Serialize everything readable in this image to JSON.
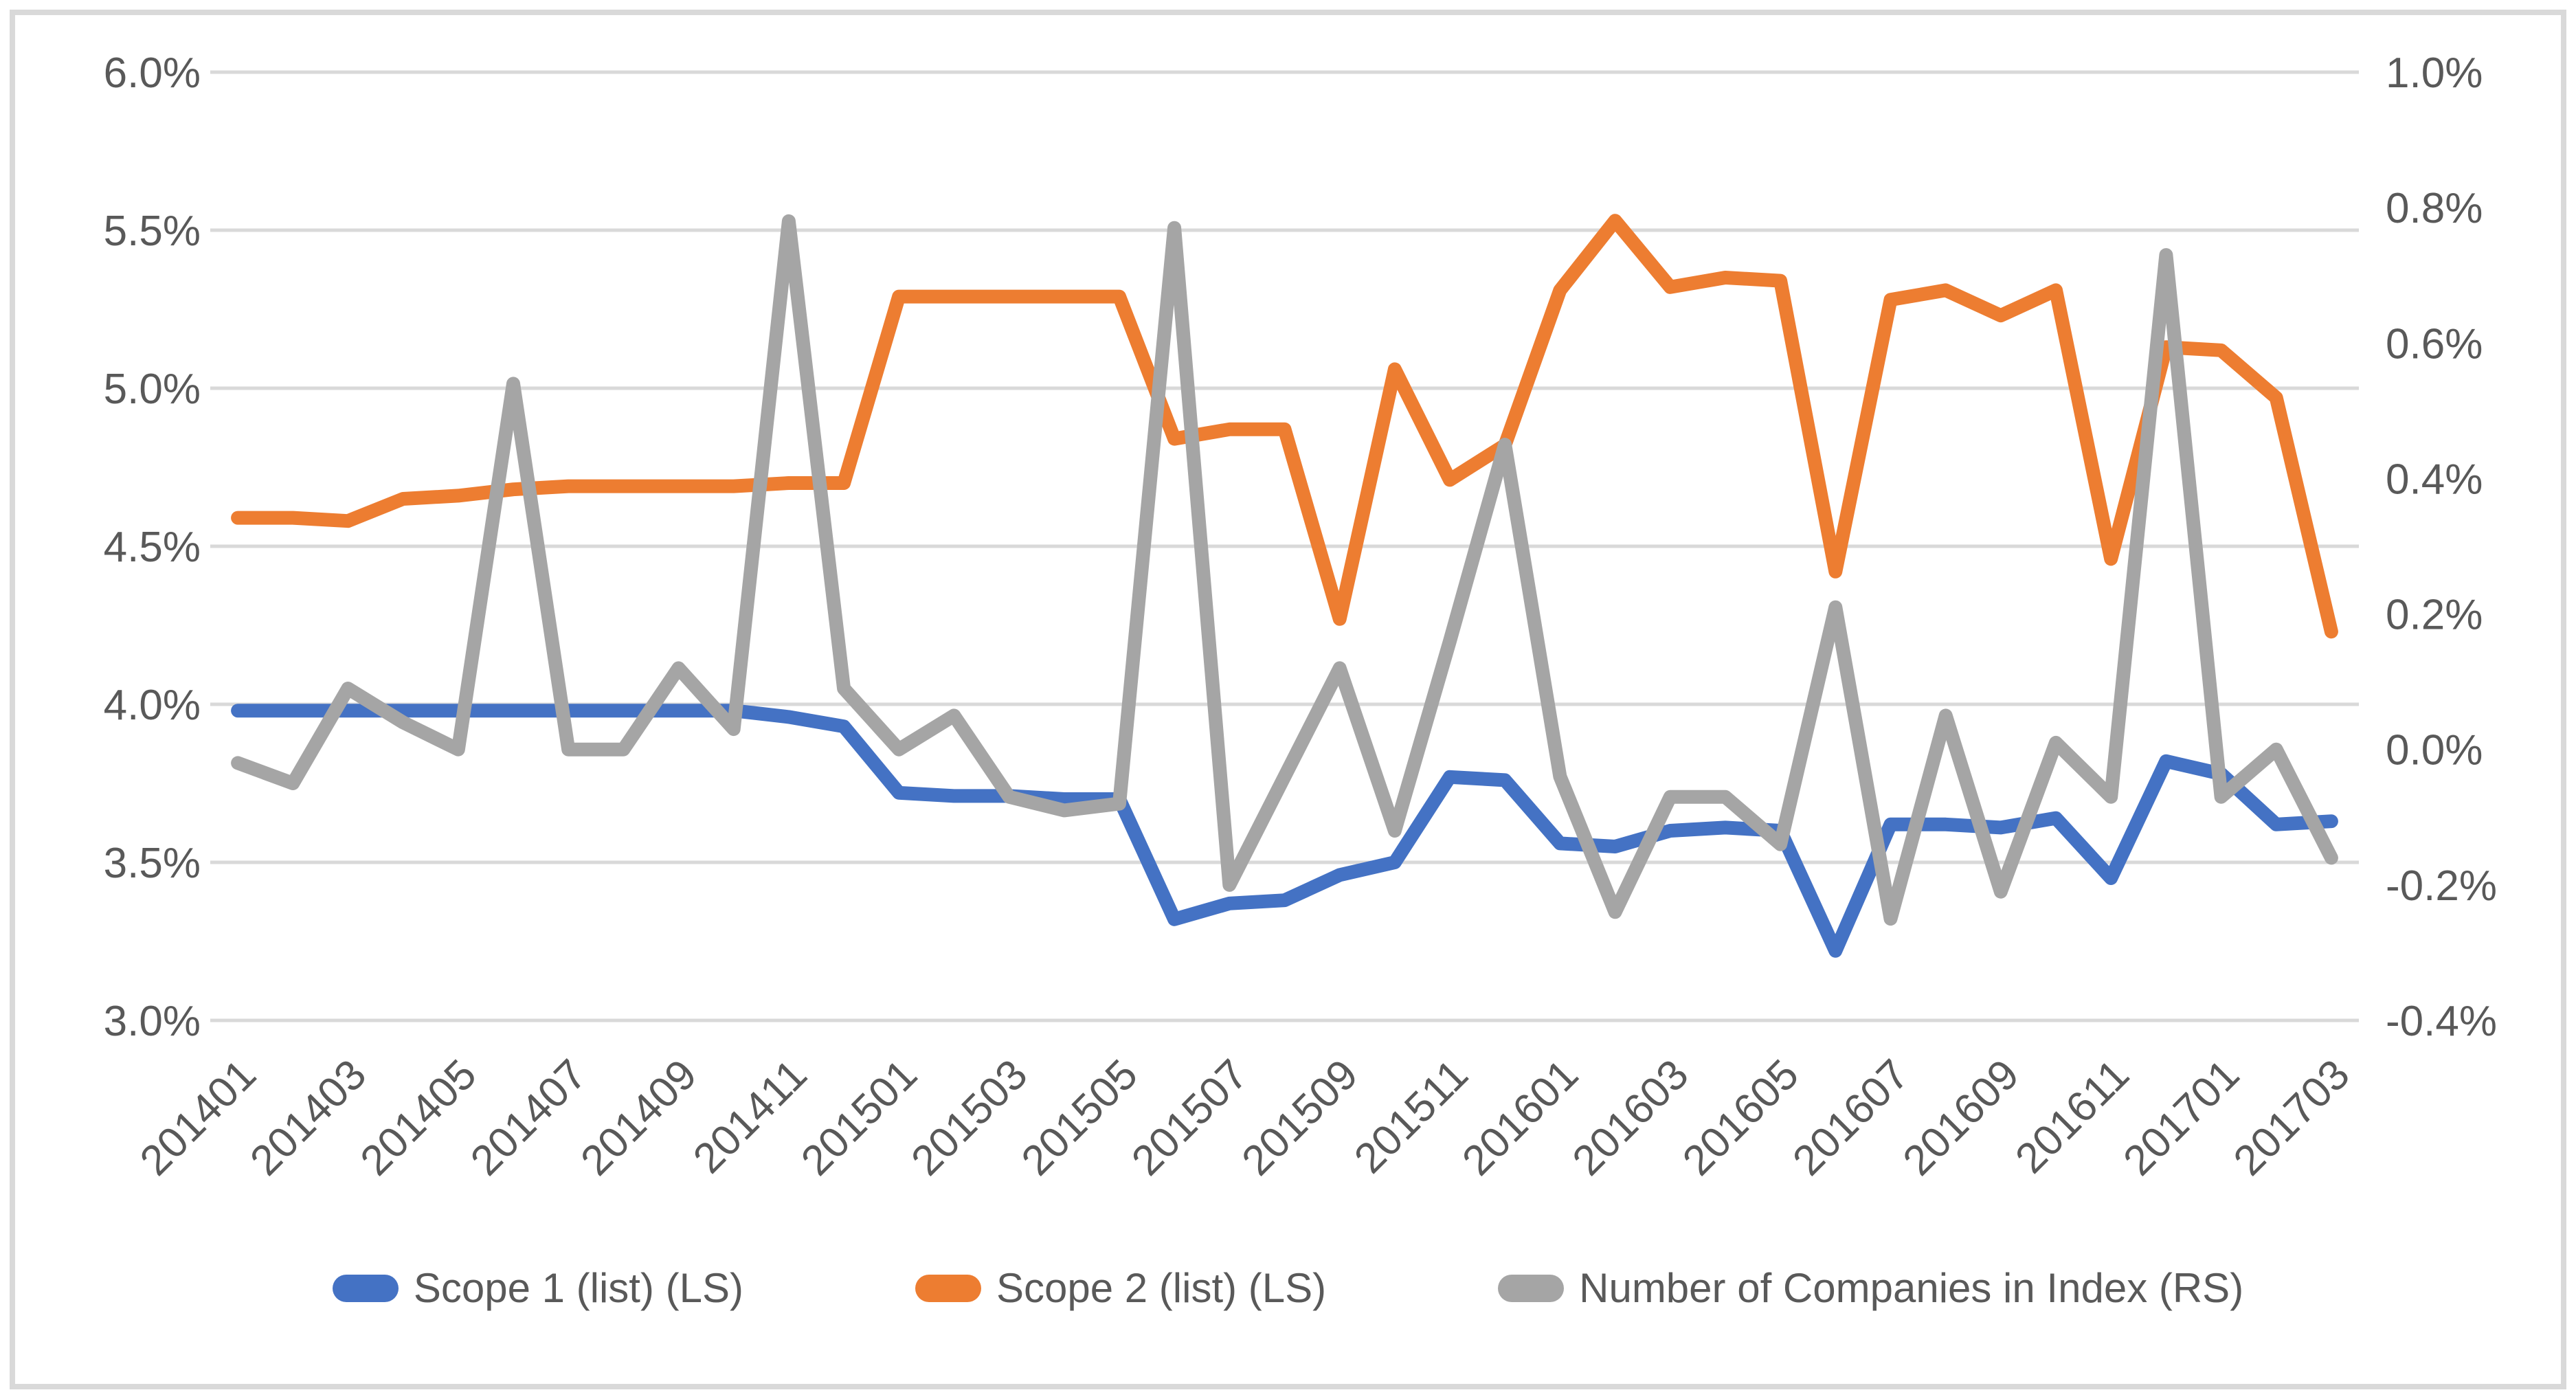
{
  "chart_data": {
    "type": "line",
    "title": "",
    "xlabel": "",
    "ylabel": "",
    "grid": true,
    "legend_position": "bottom",
    "categories": [
      "201401",
      "201402",
      "201403",
      "201404",
      "201405",
      "201406",
      "201407",
      "201408",
      "201409",
      "201410",
      "201411",
      "201412",
      "201501",
      "201502",
      "201503",
      "201504",
      "201505",
      "201506",
      "201507",
      "201508",
      "201509",
      "201510",
      "201511",
      "201512",
      "201601",
      "201602",
      "201603",
      "201604",
      "201605",
      "201606",
      "201607",
      "201608",
      "201609",
      "201610",
      "201611",
      "201612",
      "201701",
      "201702",
      "201703"
    ],
    "x_ticks": [
      "201401",
      "201403",
      "201405",
      "201407",
      "201409",
      "201411",
      "201501",
      "201503",
      "201505",
      "201507",
      "201509",
      "201511",
      "201601",
      "201603",
      "201605",
      "201607",
      "201609",
      "201611",
      "201701",
      "201703"
    ],
    "left_axis": {
      "min": 3.0,
      "max": 6.0,
      "ticks": [
        "6.0%",
        "5.5%",
        "5.0%",
        "4.5%",
        "4.0%",
        "3.5%",
        "3.0%"
      ],
      "tick_values": [
        6.0,
        5.5,
        5.0,
        4.5,
        4.0,
        3.5,
        3.0
      ]
    },
    "right_axis": {
      "min": -0.4,
      "max": 1.0,
      "ticks": [
        "1.0%",
        "0.8%",
        "0.6%",
        "0.4%",
        "0.2%",
        "0.0%",
        "-0.2%",
        "-0.4%"
      ],
      "tick_values": [
        1.0,
        0.8,
        0.6,
        0.4,
        0.2,
        0.0,
        -0.2,
        -0.4
      ]
    },
    "series": [
      {
        "name": "Scope 1 (list) (LS)",
        "axis": "left",
        "color": "#4472C4",
        "values": [
          3.98,
          3.98,
          3.98,
          3.98,
          3.98,
          3.98,
          3.98,
          3.98,
          3.98,
          3.98,
          3.96,
          3.93,
          3.72,
          3.71,
          3.71,
          3.7,
          3.7,
          3.32,
          3.37,
          3.38,
          3.46,
          3.5,
          3.77,
          3.76,
          3.56,
          3.55,
          3.6,
          3.61,
          3.6,
          3.22,
          3.62,
          3.62,
          3.61,
          3.64,
          3.45,
          3.82,
          3.78,
          3.62,
          3.63
        ]
      },
      {
        "name": "Scope 2 (list) (LS)",
        "axis": "left",
        "color": "#ED7D31",
        "values": [
          4.59,
          4.59,
          4.58,
          4.65,
          4.66,
          4.68,
          4.69,
          4.69,
          4.69,
          4.69,
          4.7,
          4.7,
          5.29,
          5.29,
          5.29,
          5.29,
          5.29,
          4.84,
          4.87,
          4.87,
          4.27,
          5.06,
          4.71,
          4.82,
          5.31,
          5.53,
          5.32,
          5.35,
          5.34,
          4.42,
          5.28,
          5.31,
          5.23,
          5.31,
          4.46,
          5.13,
          5.12,
          4.97,
          4.23
        ]
      },
      {
        "name": "Number of Companies in Index (RS)",
        "axis": "right",
        "color": "#A5A5A5",
        "values": [
          -0.02,
          -0.05,
          0.09,
          0.04,
          0.0,
          0.54,
          0.0,
          0.0,
          0.12,
          0.03,
          0.78,
          0.09,
          0.0,
          0.05,
          -0.07,
          -0.09,
          -0.08,
          0.77,
          -0.2,
          -0.04,
          0.12,
          -0.12,
          0.16,
          0.45,
          -0.04,
          -0.24,
          -0.07,
          -0.07,
          -0.14,
          0.21,
          -0.25,
          0.05,
          -0.21,
          0.01,
          -0.07,
          0.73,
          -0.07,
          0.0,
          -0.16
        ]
      }
    ]
  },
  "colors": {
    "axis_text": "#595959",
    "gridline": "#D9D9D9",
    "frame_border": "#D9D9D9",
    "background": "#FFFFFF"
  },
  "legend": {
    "items": [
      {
        "label": "Scope 1 (list) (LS)",
        "color": "#4472C4"
      },
      {
        "label": "Scope 2 (list) (LS)",
        "color": "#ED7D31"
      },
      {
        "label": "Number of Companies in Index (RS)",
        "color": "#A5A5A5"
      }
    ]
  }
}
